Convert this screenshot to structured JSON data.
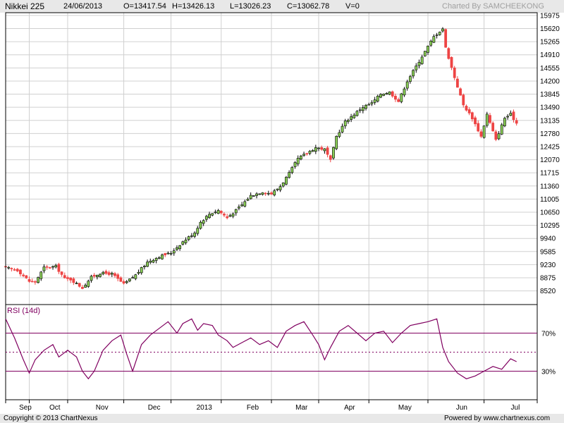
{
  "header": {
    "title": "Nikkei 225",
    "date": "24/06/2013",
    "open": "O=13417.54",
    "high": "H=13426.13",
    "low": "L=13026.23",
    "close": "C=13062.78",
    "volume": "V=0",
    "credit": "Charted By SAMCHEEKONG"
  },
  "footer": {
    "copyright": "Copyright © 2013 ChartNexus",
    "powered": "Powered by www.chartnexus.com"
  },
  "colors": {
    "up": "#88cc55",
    "down": "#ee4444",
    "rsi": "#800060",
    "grid": "#d0d0d0"
  },
  "chart_data": [
    {
      "type": "candlestick",
      "title": "Nikkei 225",
      "ylim": [
        8150,
        16050
      ],
      "y_ticks": [
        8520,
        8875,
        9230,
        9585,
        9940,
        10295,
        10650,
        11005,
        11360,
        11715,
        12070,
        12425,
        12780,
        13135,
        13490,
        13845,
        14200,
        14555,
        14910,
        15265,
        15620,
        15975
      ],
      "x_labels": [
        "Sep",
        "Oct",
        "Nov",
        "Dec",
        "2013",
        "Feb",
        "Mar",
        "Apr",
        "May",
        "Jun",
        "Jul"
      ],
      "close_path": [
        [
          0,
          9150
        ],
        [
          4,
          9080
        ],
        [
          8,
          8780
        ],
        [
          10,
          8760
        ],
        [
          13,
          9150
        ],
        [
          17,
          9180
        ],
        [
          20,
          8850
        ],
        [
          22,
          8830
        ],
        [
          26,
          8600
        ],
        [
          29,
          8890
        ],
        [
          32,
          9000
        ],
        [
          36,
          8980
        ],
        [
          40,
          8700
        ],
        [
          44,
          8950
        ],
        [
          48,
          9300
        ],
        [
          52,
          9450
        ],
        [
          56,
          9550
        ],
        [
          60,
          9850
        ],
        [
          64,
          10100
        ],
        [
          66,
          10380
        ],
        [
          69,
          10600
        ],
        [
          72,
          10700
        ],
        [
          75,
          10500
        ],
        [
          78,
          10700
        ],
        [
          80,
          10850
        ],
        [
          83,
          11100
        ],
        [
          87,
          11200
        ],
        [
          90,
          11150
        ],
        [
          93,
          11350
        ],
        [
          96,
          11700
        ],
        [
          99,
          12100
        ],
        [
          102,
          12250
        ],
        [
          105,
          12400
        ],
        [
          108,
          12350
        ],
        [
          110,
          12050
        ],
        [
          112,
          12700
        ],
        [
          115,
          13100
        ],
        [
          118,
          13300
        ],
        [
          121,
          13500
        ],
        [
          124,
          13600
        ],
        [
          127,
          13850
        ],
        [
          130,
          13900
        ],
        [
          133,
          13650
        ],
        [
          136,
          14200
        ],
        [
          139,
          14600
        ],
        [
          142,
          15000
        ],
        [
          145,
          15400
        ],
        [
          148,
          15620
        ],
        [
          149,
          15100
        ],
        [
          152,
          14300
        ],
        [
          155,
          13550
        ],
        [
          158,
          13200
        ],
        [
          161,
          12700
        ],
        [
          163,
          13300
        ],
        [
          166,
          12600
        ],
        [
          169,
          13200
        ],
        [
          171,
          13300
        ],
        [
          173,
          13060
        ]
      ],
      "axis_positions": [
        0,
        8,
        21,
        40,
        56,
        73,
        90,
        106,
        123,
        143,
        162,
        180
      ]
    },
    {
      "type": "line",
      "title": "RSI (14d)",
      "ylim": [
        0,
        100
      ],
      "y_ticks": [
        30,
        70
      ],
      "reference_lines": [
        30,
        50,
        70
      ],
      "series": [
        {
          "values": [
            [
              0,
              85
            ],
            [
              3,
              65
            ],
            [
              6,
              42
            ],
            [
              8,
              28
            ],
            [
              10,
              42
            ],
            [
              13,
              52
            ],
            [
              16,
              58
            ],
            [
              18,
              45
            ],
            [
              21,
              52
            ],
            [
              24,
              45
            ],
            [
              26,
              30
            ],
            [
              28,
              22
            ],
            [
              30,
              30
            ],
            [
              33,
              52
            ],
            [
              36,
              62
            ],
            [
              39,
              68
            ],
            [
              41,
              48
            ],
            [
              43,
              30
            ],
            [
              46,
              58
            ],
            [
              49,
              68
            ],
            [
              52,
              75
            ],
            [
              55,
              82
            ],
            [
              58,
              70
            ],
            [
              60,
              80
            ],
            [
              63,
              85
            ],
            [
              65,
              73
            ],
            [
              67,
              80
            ],
            [
              70,
              78
            ],
            [
              72,
              68
            ],
            [
              75,
              62
            ],
            [
              77,
              55
            ],
            [
              80,
              60
            ],
            [
              83,
              65
            ],
            [
              86,
              58
            ],
            [
              89,
              62
            ],
            [
              92,
              55
            ],
            [
              95,
              72
            ],
            [
              98,
              78
            ],
            [
              101,
              82
            ],
            [
              104,
              68
            ],
            [
              106,
              58
            ],
            [
              108,
              42
            ],
            [
              110,
              55
            ],
            [
              113,
              72
            ],
            [
              116,
              78
            ],
            [
              119,
              70
            ],
            [
              122,
              62
            ],
            [
              125,
              70
            ],
            [
              128,
              72
            ],
            [
              131,
              60
            ],
            [
              134,
              70
            ],
            [
              137,
              78
            ],
            [
              140,
              80
            ],
            [
              143,
              82
            ],
            [
              146,
              85
            ],
            [
              148,
              55
            ],
            [
              150,
              40
            ],
            [
              153,
              28
            ],
            [
              156,
              22
            ],
            [
              159,
              25
            ],
            [
              162,
              30
            ],
            [
              165,
              35
            ],
            [
              168,
              32
            ],
            [
              171,
              43
            ],
            [
              173,
              40
            ]
          ]
        }
      ]
    }
  ]
}
